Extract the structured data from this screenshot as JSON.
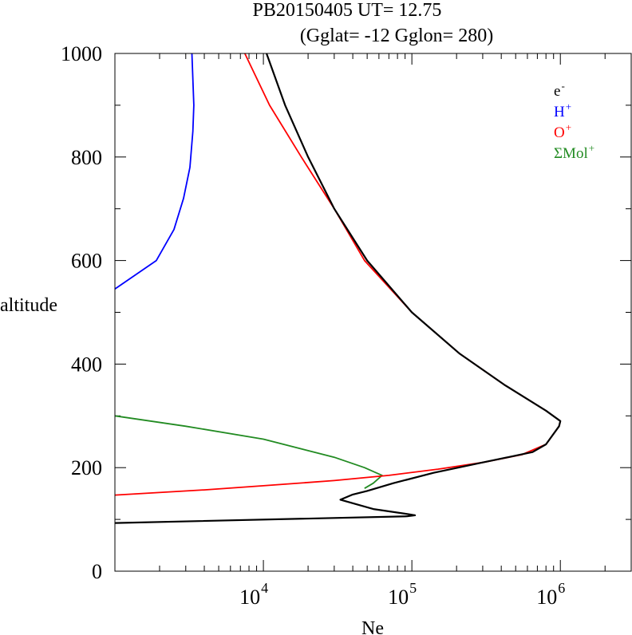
{
  "chart_data": {
    "type": "line",
    "title_line1": "PB20150405   UT=  12.75",
    "title_line2": "(Gglat= -12   Gglon=  280)",
    "xlabel": "Ne",
    "ylabel": "altitude",
    "x_scale": "log",
    "xlim": [
      1000,
      3000000
    ],
    "ylim": [
      0,
      1000
    ],
    "x_ticks": [
      {
        "value": 10000,
        "label": "10",
        "exp": "4"
      },
      {
        "value": 100000,
        "label": "10",
        "exp": "5"
      },
      {
        "value": 1000000,
        "label": "10",
        "exp": "6"
      }
    ],
    "y_ticks": [
      {
        "value": 0,
        "label": "0"
      },
      {
        "value": 200,
        "label": "200"
      },
      {
        "value": 400,
        "label": "400"
      },
      {
        "value": 600,
        "label": "600"
      },
      {
        "value": 800,
        "label": "800"
      },
      {
        "value": 1000,
        "label": "1000"
      }
    ],
    "legend_position": "top-right",
    "legend": [
      {
        "label": "e",
        "sup": "-",
        "color": "#000000"
      },
      {
        "label": "H",
        "sup": "+",
        "color": "#0000ff"
      },
      {
        "label": "O",
        "sup": "+",
        "color": "#ff0000"
      },
      {
        "label": "ΣMol",
        "sup": "+",
        "color": "#228b22"
      }
    ],
    "series": [
      {
        "color": "#000000",
        "points": [
          [
            10500,
            1000
          ],
          [
            14000,
            900
          ],
          [
            20000,
            800
          ],
          [
            30000,
            700
          ],
          [
            50000,
            600
          ],
          [
            100000,
            500
          ],
          [
            210000,
            420
          ],
          [
            420000,
            360
          ],
          [
            800000,
            310
          ],
          [
            1000000,
            290
          ],
          [
            980000,
            280
          ],
          [
            800000,
            245
          ],
          [
            650000,
            230
          ],
          [
            300000,
            210
          ],
          [
            140000,
            190
          ],
          [
            75000,
            170
          ],
          [
            50000,
            155
          ],
          [
            40000,
            148
          ],
          [
            33000,
            138
          ],
          [
            55000,
            120
          ],
          [
            95000,
            110
          ],
          [
            105000,
            108
          ],
          [
            93000,
            106
          ],
          [
            1000,
            93
          ]
        ]
      },
      {
        "color": "#0000ff",
        "points": [
          [
            3300,
            1000
          ],
          [
            3400,
            900
          ],
          [
            3350,
            850
          ],
          [
            3200,
            780
          ],
          [
            2900,
            720
          ],
          [
            2500,
            660
          ],
          [
            1900,
            600
          ],
          [
            1000,
            545
          ]
        ]
      },
      {
        "color": "#ff0000",
        "points": [
          [
            7500,
            1000
          ],
          [
            11000,
            900
          ],
          [
            18000,
            800
          ],
          [
            30000,
            700
          ],
          [
            48000,
            600
          ],
          [
            100000,
            500
          ],
          [
            210000,
            420
          ],
          [
            420000,
            360
          ],
          [
            800000,
            310
          ],
          [
            1000000,
            290
          ],
          [
            980000,
            280
          ],
          [
            800000,
            245
          ],
          [
            550000,
            225
          ],
          [
            300000,
            210
          ],
          [
            150000,
            197
          ],
          [
            70000,
            185
          ],
          [
            30000,
            175
          ],
          [
            10000,
            165
          ],
          [
            4000,
            157
          ],
          [
            1000,
            147
          ]
        ]
      },
      {
        "color": "#228b22",
        "points": [
          [
            1000,
            300
          ],
          [
            3000,
            280
          ],
          [
            10000,
            255
          ],
          [
            30000,
            220
          ],
          [
            48000,
            200
          ],
          [
            63000,
            185
          ],
          [
            55000,
            170
          ],
          [
            48000,
            160
          ]
        ]
      }
    ]
  }
}
